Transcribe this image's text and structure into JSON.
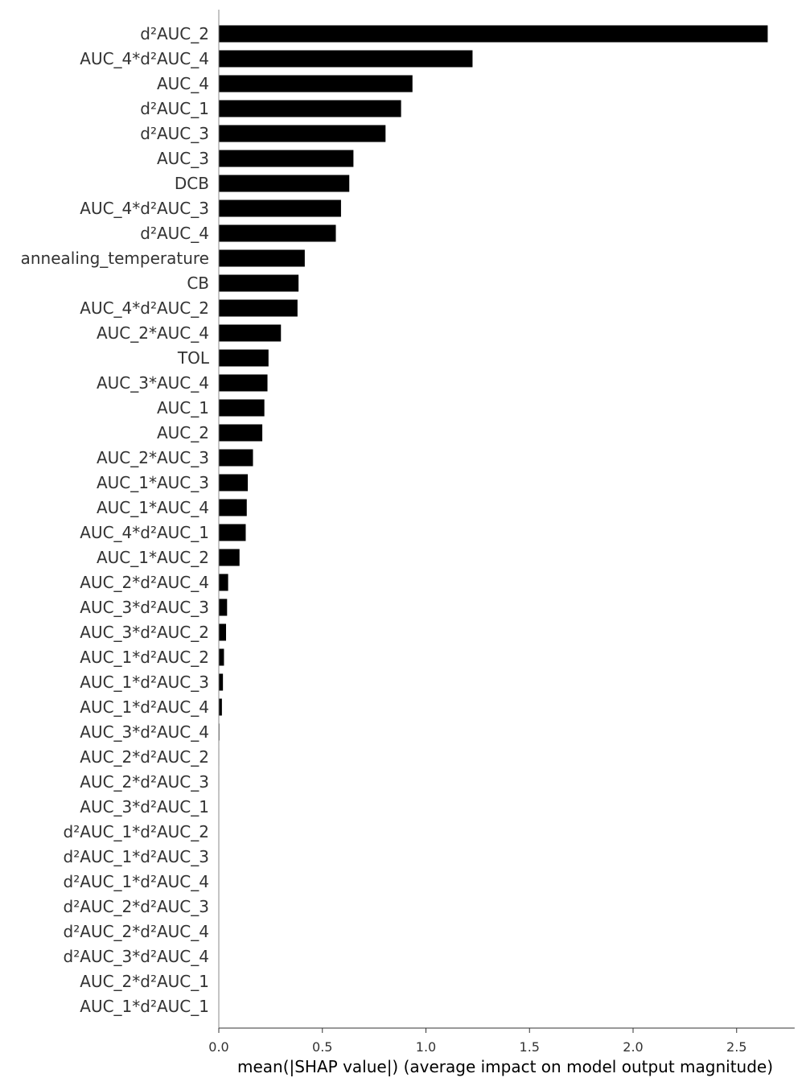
{
  "chart_data": {
    "type": "bar",
    "orientation": "horizontal",
    "title": "",
    "xlabel": "mean(|SHAP value|) (average impact on model output magnitude)",
    "ylabel": "",
    "xlim": [
      0,
      2.78
    ],
    "xticks": [
      0.0,
      0.5,
      1.0,
      1.5,
      2.0,
      2.5
    ],
    "xtick_labels": [
      "0.0",
      "0.5",
      "1.0",
      "1.5",
      "2.0",
      "2.5"
    ],
    "grid": false,
    "bar_color": "#000000",
    "categories": [
      "d²AUC_2",
      "AUC_4*d²AUC_4",
      "AUC_4",
      "d²AUC_1",
      "d²AUC_3",
      "AUC_3",
      "DCB",
      "AUC_4*d²AUC_3",
      "d²AUC_4",
      "annealing_temperature",
      "CB",
      "AUC_4*d²AUC_2",
      "AUC_2*AUC_4",
      "TOL",
      "AUC_3*AUC_4",
      "AUC_1",
      "AUC_2",
      "AUC_2*AUC_3",
      "AUC_1*AUC_3",
      "AUC_1*AUC_4",
      "AUC_4*d²AUC_1",
      "AUC_1*AUC_2",
      "AUC_2*d²AUC_4",
      "AUC_3*d²AUC_3",
      "AUC_3*d²AUC_2",
      "AUC_1*d²AUC_2",
      "AUC_1*d²AUC_3",
      "AUC_1*d²AUC_4",
      "AUC_3*d²AUC_4",
      "AUC_2*d²AUC_2",
      "AUC_2*d²AUC_3",
      "AUC_3*d²AUC_1",
      "d²AUC_1*d²AUC_2",
      "d²AUC_1*d²AUC_3",
      "d²AUC_1*d²AUC_4",
      "d²AUC_2*d²AUC_3",
      "d²AUC_2*d²AUC_4",
      "d²AUC_3*d²AUC_4",
      "AUC_2*d²AUC_1",
      "AUC_1*d²AUC_1"
    ],
    "values": [
      2.65,
      1.225,
      0.935,
      0.88,
      0.805,
      0.65,
      0.63,
      0.59,
      0.565,
      0.415,
      0.385,
      0.38,
      0.3,
      0.24,
      0.235,
      0.22,
      0.21,
      0.165,
      0.14,
      0.135,
      0.13,
      0.1,
      0.045,
      0.04,
      0.035,
      0.025,
      0.02,
      0.015,
      0.003,
      0.002,
      0.002,
      0.001,
      0.0,
      0.0,
      0.0,
      0.0,
      0.0,
      0.0,
      0.0,
      0.0
    ]
  }
}
